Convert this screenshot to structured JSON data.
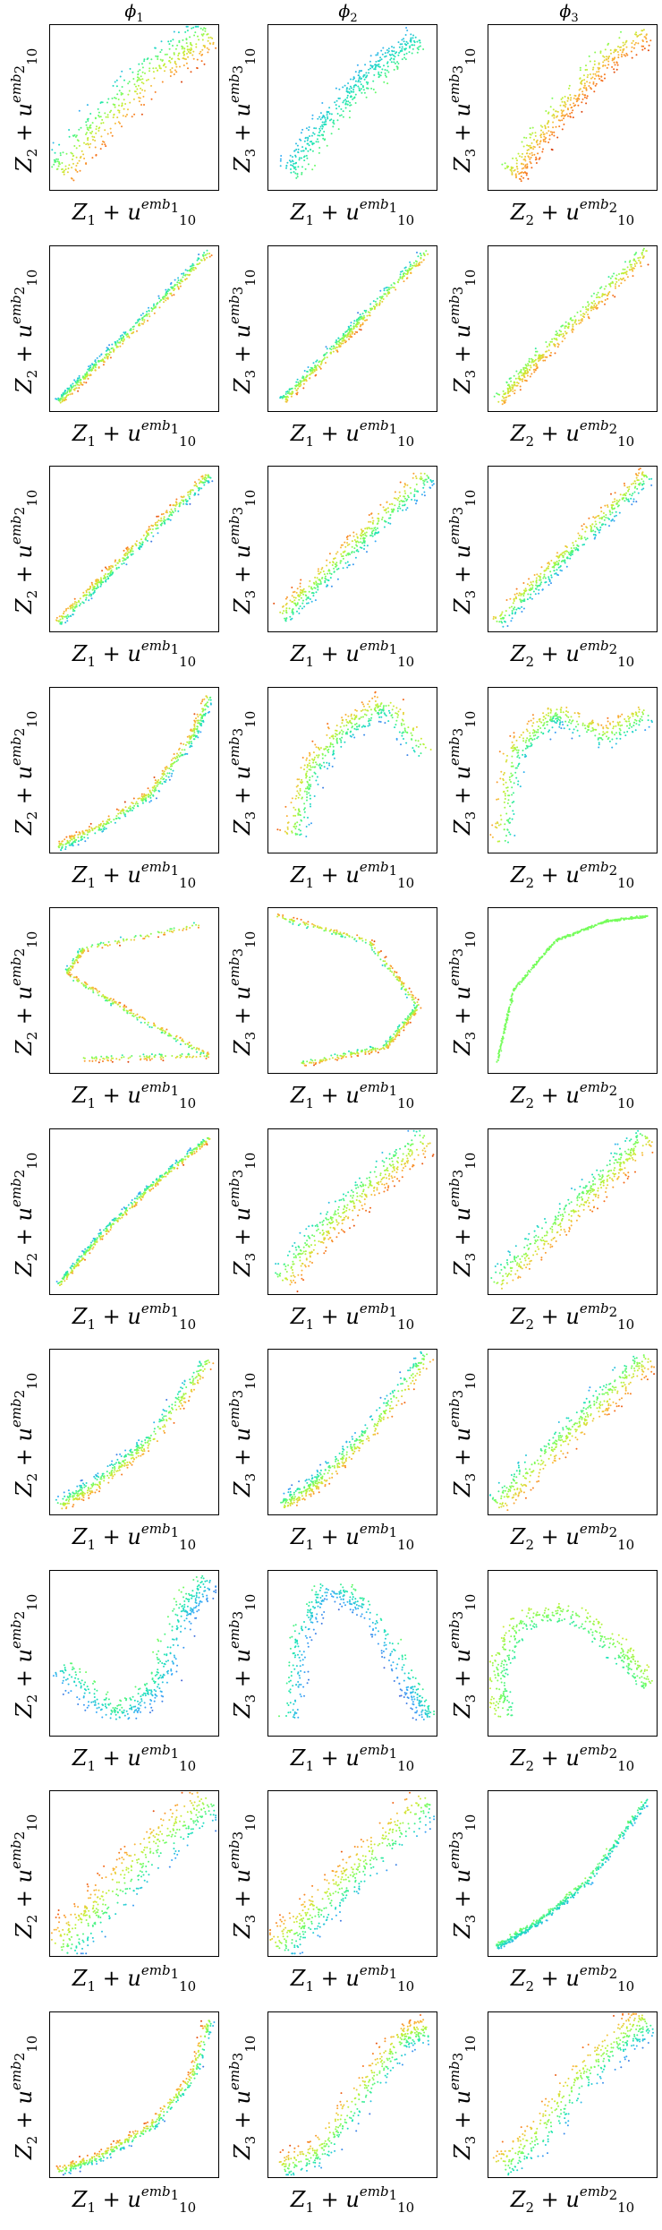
{
  "columns": [
    {
      "symbol": "ϕ",
      "index": "1"
    },
    {
      "symbol": "ϕ",
      "index": "2"
    },
    {
      "symbol": "ϕ",
      "index": "3"
    }
  ],
  "axis_text": {
    "z1": "Z",
    "z1_sub": "1",
    "z2": "Z",
    "z2_sub": "2",
    "z3": "Z",
    "z3_sub": "3",
    "plus": " + ",
    "u": "u",
    "u_sub": "10",
    "emb1": "emb",
    "emb1_sub": "1",
    "emb2": "emb",
    "emb2_sub": "2",
    "emb3": "emb",
    "emb3_sub": "3"
  },
  "colormap": [
    "#30123b",
    "#4662d7",
    "#36aaf9",
    "#1ae4b6",
    "#72fe5e",
    "#c7ef34",
    "#faba39",
    "#f66b19",
    "#ca2a04",
    "#7a0403"
  ],
  "chart_data": {
    "type": "scatter",
    "grid": false,
    "legend": "none",
    "rows": 10,
    "cols": 3,
    "column_titles": [
      "ϕ1",
      "ϕ2",
      "ϕ3"
    ],
    "xlabels": [
      "Z1 + u10^emb1",
      "Z1 + u10^emb1",
      "Z2 + u10^emb2"
    ],
    "ylabels": [
      "Z2 + u10^emb2",
      "Z3 + u10^emb3",
      "Z3 + u10^emb3"
    ],
    "xlim": [
      0,
      1
    ],
    "ylim": [
      0,
      1
    ],
    "panels": [
      [
        {
          "path": [
            [
              0.05,
              0.1
            ],
            [
              0.2,
              0.3
            ],
            [
              0.4,
              0.5
            ],
            [
              0.6,
              0.72
            ],
            [
              0.8,
              0.85
            ],
            [
              0.95,
              0.95
            ]
          ],
          "spread": 0.18,
          "cstart": 0.9,
          "cend": 0.15
        },
        {
          "path": [
            [
              0.12,
              0.1
            ],
            [
              0.3,
              0.35
            ],
            [
              0.5,
              0.6
            ],
            [
              0.7,
              0.78
            ],
            [
              0.9,
              0.92
            ]
          ],
          "spread": 0.12,
          "cstart": 0.45,
          "cend": 0.2
        },
        {
          "path": [
            [
              0.15,
              0.08
            ],
            [
              0.3,
              0.3
            ],
            [
              0.5,
              0.55
            ],
            [
              0.7,
              0.78
            ],
            [
              0.95,
              0.95
            ]
          ],
          "spread": 0.12,
          "cstart": 0.9,
          "cend": 0.4
        }
      ],
      [
        {
          "path": [
            [
              0.05,
              0.05
            ],
            [
              0.3,
              0.3
            ],
            [
              0.6,
              0.6
            ],
            [
              0.95,
              0.97
            ]
          ],
          "spread": 0.04,
          "cstart": 0.85,
          "cend": 0.1
        },
        {
          "path": [
            [
              0.08,
              0.05
            ],
            [
              0.3,
              0.28
            ],
            [
              0.6,
              0.6
            ],
            [
              0.95,
              0.97
            ]
          ],
          "spread": 0.05,
          "cstart": 0.9,
          "cend": 0.1
        },
        {
          "path": [
            [
              0.06,
              0.05
            ],
            [
              0.3,
              0.32
            ],
            [
              0.6,
              0.62
            ],
            [
              0.95,
              0.97
            ]
          ],
          "spread": 0.07,
          "cstart": 0.85,
          "cend": 0.3
        }
      ],
      [
        {
          "path": [
            [
              0.05,
              0.05
            ],
            [
              0.3,
              0.3
            ],
            [
              0.6,
              0.6
            ],
            [
              0.95,
              0.95
            ]
          ],
          "spread": 0.05,
          "cstart": 0.1,
          "cend": 0.9
        },
        {
          "path": [
            [
              0.08,
              0.08
            ],
            [
              0.35,
              0.35
            ],
            [
              0.65,
              0.65
            ],
            [
              0.95,
              0.95
            ]
          ],
          "spread": 0.1,
          "cstart": 0.1,
          "cend": 0.85
        },
        {
          "path": [
            [
              0.05,
              0.05
            ],
            [
              0.35,
              0.35
            ],
            [
              0.65,
              0.65
            ],
            [
              0.95,
              0.95
            ]
          ],
          "spread": 0.08,
          "cstart": 0.1,
          "cend": 0.85
        }
      ],
      [
        {
          "path": [
            [
              0.05,
              0.03
            ],
            [
              0.3,
              0.15
            ],
            [
              0.6,
              0.35
            ],
            [
              0.85,
              0.7
            ],
            [
              0.95,
              0.95
            ]
          ],
          "spread": 0.05,
          "cstart": 0.1,
          "cend": 0.9
        },
        {
          "path": [
            [
              0.15,
              0.1
            ],
            [
              0.25,
              0.5
            ],
            [
              0.45,
              0.75
            ],
            [
              0.7,
              0.9
            ],
            [
              0.95,
              0.6
            ]
          ],
          "spread": 0.12,
          "cstart": 0.1,
          "cend": 0.85
        },
        {
          "path": [
            [
              0.08,
              0.05
            ],
            [
              0.15,
              0.6
            ],
            [
              0.4,
              0.85
            ],
            [
              0.7,
              0.7
            ],
            [
              0.95,
              0.85
            ]
          ],
          "spread": 0.12,
          "cstart": 0.1,
          "cend": 0.85
        }
      ],
      [
        {
          "path": [
            [
              0.9,
              0.9
            ],
            [
              0.2,
              0.75
            ],
            [
              0.1,
              0.6
            ],
            [
              0.5,
              0.35
            ],
            [
              0.95,
              0.1
            ],
            [
              0.2,
              0.08
            ]
          ],
          "spread": 0.03,
          "cstart": 0.2,
          "cend": 0.9
        },
        {
          "path": [
            [
              0.05,
              0.95
            ],
            [
              0.6,
              0.8
            ],
            [
              0.9,
              0.4
            ],
            [
              0.7,
              0.15
            ],
            [
              0.2,
              0.05
            ]
          ],
          "spread": 0.03,
          "cstart": 0.2,
          "cend": 0.9
        },
        {
          "path": [
            [
              0.05,
              0.05
            ],
            [
              0.15,
              0.5
            ],
            [
              0.4,
              0.8
            ],
            [
              0.7,
              0.92
            ],
            [
              0.95,
              0.95
            ]
          ],
          "spread": 0.01,
          "cstart": 0.45,
          "cend": 0.45
        }
      ],
      [
        {
          "path": [
            [
              0.05,
              0.05
            ],
            [
              0.3,
              0.35
            ],
            [
              0.6,
              0.65
            ],
            [
              0.95,
              0.95
            ]
          ],
          "spread": 0.03,
          "cstart": 0.85,
          "cend": 0.1
        },
        {
          "path": [
            [
              0.08,
              0.08
            ],
            [
              0.35,
              0.4
            ],
            [
              0.65,
              0.7
            ],
            [
              0.95,
              0.95
            ]
          ],
          "spread": 0.14,
          "cstart": 0.9,
          "cend": 0.15
        },
        {
          "path": [
            [
              0.05,
              0.05
            ],
            [
              0.35,
              0.35
            ],
            [
              0.65,
              0.65
            ],
            [
              0.95,
              0.95
            ]
          ],
          "spread": 0.12,
          "cstart": 0.85,
          "cend": 0.2
        }
      ],
      [
        {
          "path": [
            [
              0.05,
              0.05
            ],
            [
              0.3,
              0.2
            ],
            [
              0.6,
              0.45
            ],
            [
              0.95,
              0.95
            ]
          ],
          "spread": 0.07,
          "cstart": 0.85,
          "cend": 0.1
        },
        {
          "path": [
            [
              0.08,
              0.05
            ],
            [
              0.3,
              0.2
            ],
            [
              0.6,
              0.5
            ],
            [
              0.95,
              0.97
            ]
          ],
          "spread": 0.08,
          "cstart": 0.85,
          "cend": 0.1
        },
        {
          "path": [
            [
              0.05,
              0.05
            ],
            [
              0.35,
              0.35
            ],
            [
              0.65,
              0.65
            ],
            [
              0.95,
              0.95
            ]
          ],
          "spread": 0.12,
          "cstart": 0.85,
          "cend": 0.2
        }
      ],
      [
        {
          "path": [
            [
              0.05,
              0.4
            ],
            [
              0.4,
              0.1
            ],
            [
              0.65,
              0.3
            ],
            [
              0.8,
              0.75
            ],
            [
              0.95,
              0.95
            ]
          ],
          "spread": 0.13,
          "cstart": 0.1,
          "cend": 0.5
        },
        {
          "path": [
            [
              0.15,
              0.1
            ],
            [
              0.2,
              0.6
            ],
            [
              0.35,
              0.9
            ],
            [
              0.6,
              0.75
            ],
            [
              0.85,
              0.3
            ],
            [
              0.95,
              0.1
            ]
          ],
          "spread": 0.1,
          "cstart": 0.1,
          "cend": 0.45
        },
        {
          "path": [
            [
              0.1,
              0.1
            ],
            [
              0.05,
              0.4
            ],
            [
              0.2,
              0.7
            ],
            [
              0.5,
              0.75
            ],
            [
              0.8,
              0.5
            ],
            [
              0.95,
              0.3
            ]
          ],
          "spread": 0.1,
          "cstart": 0.3,
          "cend": 0.6
        }
      ],
      [
        {
          "path": [
            [
              0.05,
              0.05
            ],
            [
              0.3,
              0.3
            ],
            [
              0.6,
              0.65
            ],
            [
              0.95,
              0.95
            ]
          ],
          "spread": 0.2,
          "cstart": 0.1,
          "cend": 0.9
        },
        {
          "path": [
            [
              0.05,
              0.05
            ],
            [
              0.3,
              0.3
            ],
            [
              0.6,
              0.6
            ],
            [
              0.95,
              0.95
            ]
          ],
          "spread": 0.18,
          "cstart": 0.1,
          "cend": 0.9
        },
        {
          "path": [
            [
              0.05,
              0.05
            ],
            [
              0.3,
              0.2
            ],
            [
              0.6,
              0.45
            ],
            [
              0.95,
              0.95
            ]
          ],
          "spread": 0.03,
          "cstart": 0.2,
          "cend": 0.5
        }
      ],
      [
        {
          "path": [
            [
              0.05,
              0.03
            ],
            [
              0.3,
              0.12
            ],
            [
              0.6,
              0.3
            ],
            [
              0.85,
              0.6
            ],
            [
              0.95,
              0.95
            ]
          ],
          "spread": 0.05,
          "cstart": 0.1,
          "cend": 0.9
        },
        {
          "path": [
            [
              0.08,
              0.05
            ],
            [
              0.3,
              0.15
            ],
            [
              0.55,
              0.5
            ],
            [
              0.8,
              0.85
            ],
            [
              0.95,
              0.9
            ]
          ],
          "spread": 0.13,
          "cstart": 0.1,
          "cend": 0.9
        },
        {
          "path": [
            [
              0.08,
              0.05
            ],
            [
              0.3,
              0.25
            ],
            [
              0.55,
              0.6
            ],
            [
              0.8,
              0.85
            ],
            [
              0.95,
              0.95
            ]
          ],
          "spread": 0.15,
          "cstart": 0.1,
          "cend": 0.85
        }
      ]
    ]
  }
}
